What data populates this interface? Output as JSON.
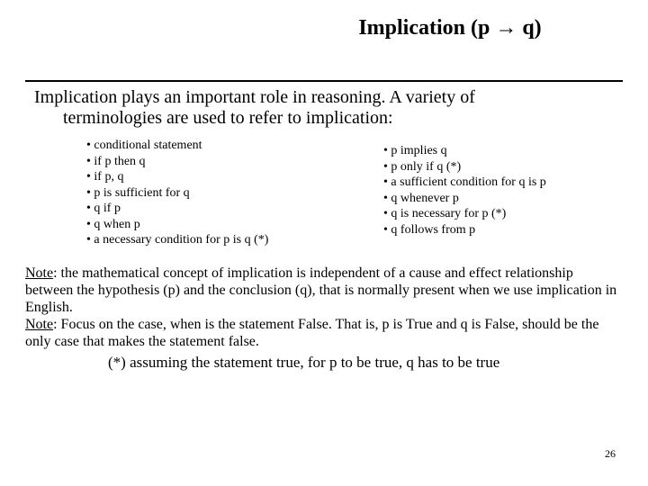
{
  "title": "Implication (p → q)",
  "intro_line1": "Implication plays an important role in reasoning.  A variety of",
  "intro_line2": "terminologies are used to refer to implication:",
  "left_bullets": [
    "conditional statement",
    "if p then q",
    "if p, q",
    "p is sufficient for q",
    "q if p",
    "q when p",
    "a necessary condition for p is q  (*)"
  ],
  "right_bullets": [
    "p implies q",
    "p only if q  (*)",
    "a sufficient condition for q is p",
    "q whenever p",
    "q is necessary for p (*)",
    "q follows from p"
  ],
  "note1_label": "Note",
  "note1_rest": ": the mathematical concept of implication is  independent of a cause and effect relationship between the  hypothesis (p) and the conclusion (q), that is normally present when we use implication in English.",
  "note2_label": "Note",
  "note2_rest": ": Focus on the case, when is the statement False. That is, p is True and q is False, should be the only case that makes the statement false.",
  "footer": "(*) assuming the  statement  true, for p to be true, q has to be true",
  "page_number": "26"
}
